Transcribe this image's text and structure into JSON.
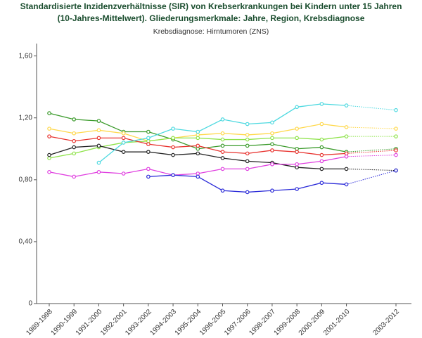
{
  "chart_data": {
    "type": "line",
    "title": [
      "Standardisierte Inzidenzverhältnisse (SIR) von Krebserkrankungen bei Kindern unter 15 Jahren",
      "(10-Jahres-Mittelwert). Gliederungsmerkmale: Jahre, Region, Krebsdiagnose"
    ],
    "subtitle": "Krebsdiagnose: Hirntumoren (ZNS)",
    "categories": [
      "1989-1998",
      "1990-1999",
      "1991-2000",
      "1992-2001",
      "1993-2002",
      "1994-2003",
      "1995-2004",
      "1996-2005",
      "1997-2006",
      "1998-2007",
      "1999-2008",
      "2000-2009",
      "2001-2010",
      null,
      "2003-2012"
    ],
    "ylim": [
      0,
      1.68
    ],
    "yticks": [
      0,
      {
        "value": 0.4,
        "label": "0,40"
      },
      {
        "value": 0.8,
        "label": "0,80"
      },
      {
        "value": 1.2,
        "label": "1,20"
      },
      {
        "value": 1.6,
        "label": "1,60"
      }
    ],
    "grid": false,
    "series": [
      {
        "color": "#3a9a2a",
        "values": [
          1.23,
          1.19,
          1.18,
          1.11,
          1.11,
          1.06,
          1.0,
          1.02,
          1.02,
          1.03,
          1.0,
          1.01,
          0.98,
          null,
          1.0
        ]
      },
      {
        "color": "#ffd84a",
        "values": [
          1.13,
          1.1,
          1.12,
          1.1,
          1.05,
          1.07,
          1.09,
          1.1,
          1.09,
          1.1,
          1.13,
          1.16,
          1.14,
          null,
          1.13
        ]
      },
      {
        "color": "#8ee34a",
        "values": [
          0.94,
          0.97,
          1.01,
          1.04,
          1.05,
          1.07,
          1.07,
          1.06,
          1.06,
          1.07,
          1.07,
          1.06,
          1.08,
          null,
          1.08
        ]
      },
      {
        "color": "#e8322e",
        "values": [
          1.08,
          1.05,
          1.07,
          1.07,
          1.03,
          1.01,
          1.02,
          0.98,
          0.97,
          0.99,
          0.98,
          0.96,
          0.97,
          null,
          0.99
        ]
      },
      {
        "color": "#222222",
        "values": [
          0.96,
          1.01,
          1.02,
          0.98,
          0.98,
          0.96,
          0.97,
          0.94,
          0.92,
          0.91,
          0.88,
          0.87,
          0.87,
          null,
          0.86
        ]
      },
      {
        "color": "#e040e0",
        "values": [
          0.85,
          0.82,
          0.85,
          0.84,
          0.87,
          0.83,
          0.84,
          0.87,
          0.87,
          0.9,
          0.9,
          0.92,
          0.95,
          null,
          0.96
        ]
      },
      {
        "color": "#4dd9e0",
        "values": [
          null,
          null,
          0.91,
          1.04,
          1.07,
          1.13,
          1.11,
          1.19,
          1.16,
          1.17,
          1.27,
          1.29,
          1.28,
          null,
          1.25
        ]
      },
      {
        "color": "#2a2ad8",
        "values": [
          null,
          null,
          null,
          null,
          0.82,
          0.83,
          0.82,
          0.73,
          0.72,
          0.73,
          0.74,
          0.78,
          0.77,
          null,
          0.86
        ]
      }
    ]
  }
}
